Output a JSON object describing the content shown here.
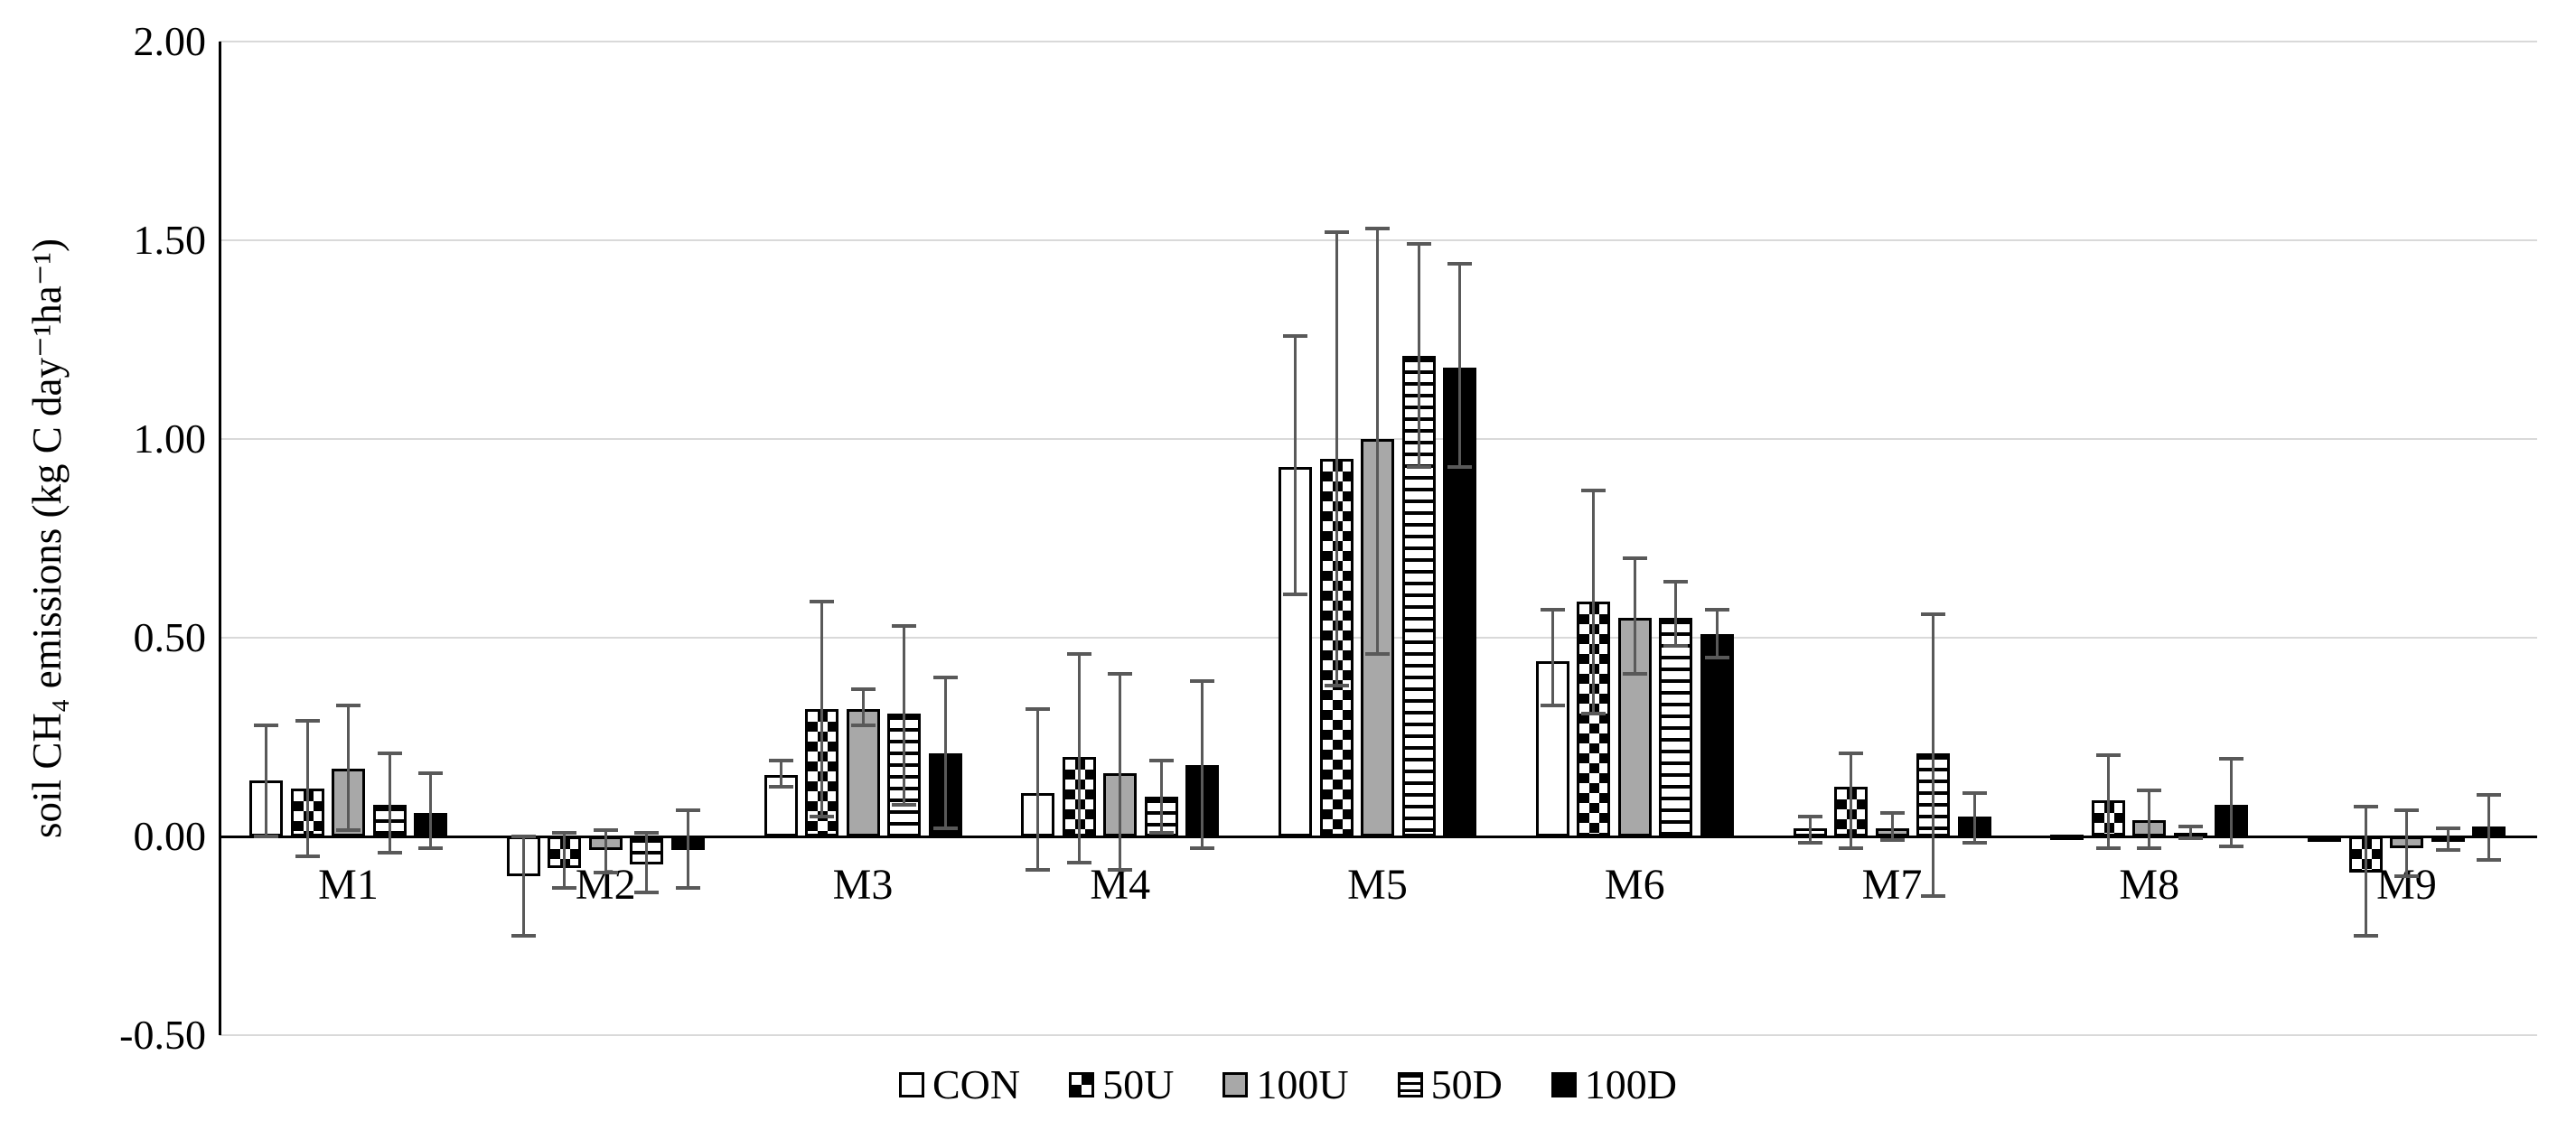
{
  "figure": {
    "background": "#ffffff"
  },
  "chart_data": {
    "type": "bar",
    "title": "",
    "ylabel": "soil CH₄ emissions (kg C day⁻¹ha⁻¹)",
    "xlabel": "",
    "ylim": [
      -0.5,
      2.0
    ],
    "y_ticks": [
      2.0,
      1.5,
      1.0,
      0.5,
      0.0,
      -0.5
    ],
    "y_tick_labels": [
      "2.00",
      "1.50",
      "1.00",
      "0.50",
      "0.00",
      "-0.50"
    ],
    "grid": true,
    "legend_position": "bottom",
    "bar_edge_color": "#000000",
    "error_bar_color": "#595959",
    "gridline_color": "#d9d9d9",
    "categories": [
      "M1",
      "M2",
      "M3",
      "M4",
      "M5",
      "M6",
      "M7",
      "M8",
      "M9"
    ],
    "series": [
      {
        "name": "CON",
        "pattern": "white",
        "values": [
          0.14,
          -0.1,
          0.155,
          0.11,
          0.93,
          0.44,
          0.02,
          0.004,
          -0.01
        ],
        "err_hi": [
          0.28,
          0.0,
          0.19,
          0.32,
          1.26,
          0.57,
          0.05,
          0.004,
          -0.01
        ],
        "err_lo": [
          0.0,
          -0.25,
          0.125,
          -0.085,
          0.61,
          0.33,
          -0.015,
          0.004,
          -0.01
        ]
      },
      {
        "name": "50U",
        "pattern": "checker",
        "values": [
          0.12,
          -0.08,
          0.32,
          0.2,
          0.95,
          0.59,
          0.125,
          0.09,
          -0.09
        ],
        "err_hi": [
          0.29,
          0.01,
          0.59,
          0.46,
          1.52,
          0.87,
          0.21,
          0.205,
          0.075
        ],
        "err_lo": [
          -0.05,
          -0.13,
          0.05,
          -0.065,
          0.38,
          0.31,
          -0.03,
          -0.03,
          -0.25
        ]
      },
      {
        "name": "100U",
        "pattern": "gray",
        "values": [
          0.17,
          -0.035,
          0.32,
          0.16,
          1.0,
          0.55,
          0.02,
          0.04,
          -0.03
        ],
        "err_hi": [
          0.33,
          0.015,
          0.37,
          0.41,
          1.53,
          0.7,
          0.06,
          0.115,
          0.065
        ],
        "err_lo": [
          0.015,
          -0.09,
          0.28,
          -0.085,
          0.46,
          0.41,
          -0.01,
          -0.03,
          -0.1
        ]
      },
      {
        "name": "50D",
        "pattern": "hstripe",
        "values": [
          0.08,
          -0.07,
          0.31,
          0.1,
          1.21,
          0.55,
          0.21,
          0.01,
          -0.01
        ],
        "err_hi": [
          0.21,
          0.01,
          0.53,
          0.19,
          1.49,
          0.64,
          0.56,
          0.025,
          0.02
        ],
        "err_lo": [
          -0.04,
          -0.14,
          0.08,
          0.01,
          0.93,
          0.48,
          -0.15,
          -0.005,
          -0.035
        ]
      },
      {
        "name": "100D",
        "pattern": "black",
        "values": [
          0.06,
          -0.035,
          0.21,
          0.18,
          1.18,
          0.51,
          0.05,
          0.08,
          0.025
        ],
        "err_hi": [
          0.16,
          0.065,
          0.4,
          0.39,
          1.44,
          0.57,
          0.11,
          0.195,
          0.105
        ],
        "err_lo": [
          -0.03,
          -0.13,
          0.02,
          -0.03,
          0.93,
          0.45,
          -0.015,
          -0.025,
          -0.06
        ]
      }
    ]
  }
}
